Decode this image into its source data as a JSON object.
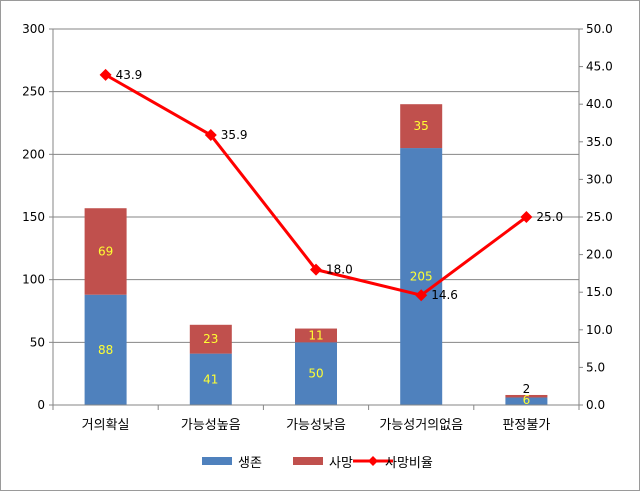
{
  "chart_data": {
    "type": "bar",
    "stacked": true,
    "categories": [
      "거의확실",
      "가능성높음",
      "가능성낮음",
      "가능성거의없음",
      "판정불가"
    ],
    "series": [
      {
        "name": "생존",
        "values": [
          88,
          41,
          50,
          205,
          6
        ],
        "color": "#4f81bd",
        "axis": "left"
      },
      {
        "name": "사망",
        "values": [
          69,
          23,
          11,
          35,
          2
        ],
        "color": "#c0504d",
        "axis": "left"
      }
    ],
    "line_series": {
      "name": "사망비율",
      "type": "line",
      "values": [
        43.9,
        35.9,
        18.0,
        14.6,
        25.0
      ],
      "labels": [
        "43.9",
        "35.9",
        "18.0",
        "14.6",
        "25.0"
      ],
      "color": "#ff0000",
      "axis": "right"
    },
    "left_axis": {
      "ylim": [
        0,
        300
      ],
      "ticks": [
        "0",
        "50",
        "100",
        "150",
        "200",
        "250",
        "300"
      ]
    },
    "right_axis": {
      "ylim": [
        0,
        50
      ],
      "ticks": [
        "0.0",
        "5.0",
        "10.0",
        "15.0",
        "20.0",
        "25.0",
        "30.0",
        "35.0",
        "40.0",
        "45.0",
        "50.0"
      ]
    },
    "grid": true,
    "legend_position": "bottom"
  }
}
